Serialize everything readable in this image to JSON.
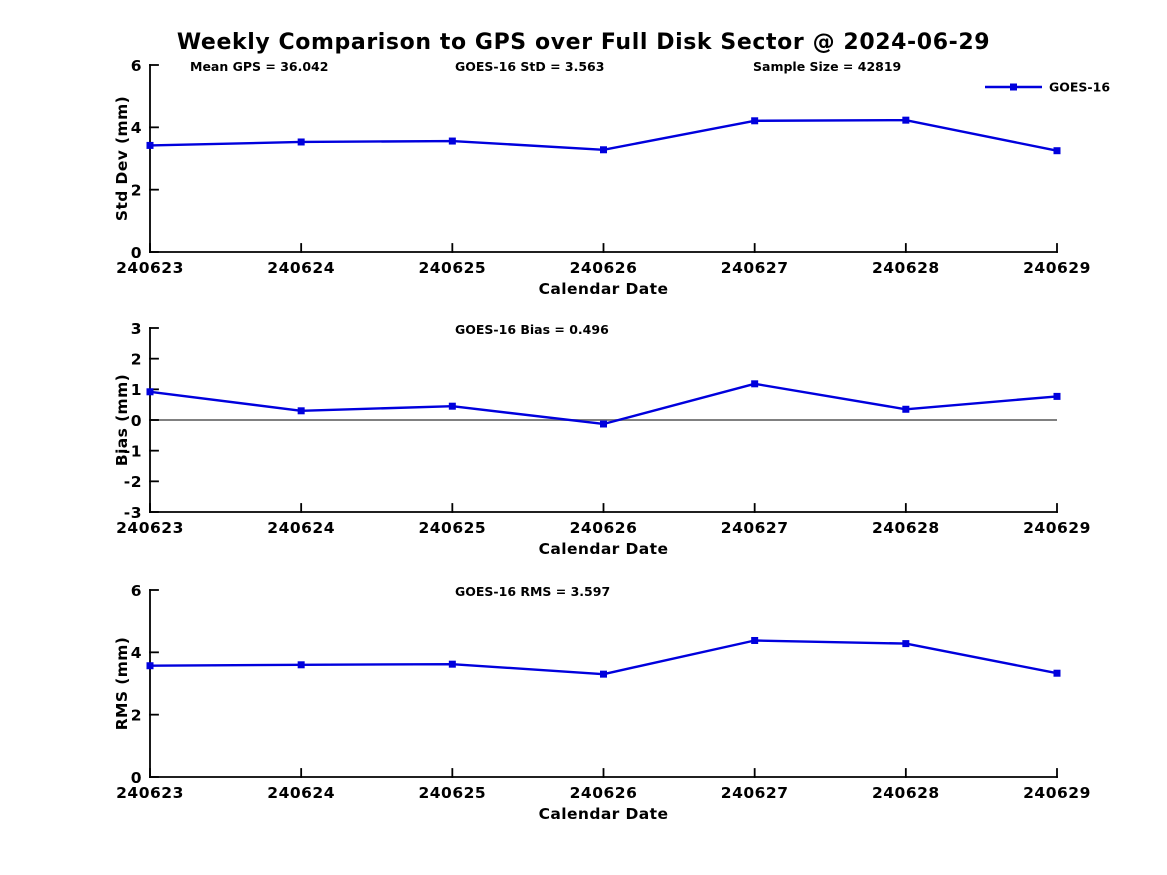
{
  "figure": {
    "title": "Weekly Comparison to GPS over Full Disk Sector @ 2024-06-29",
    "colors": {
      "series": "#0000dd",
      "zero_line": "#808080",
      "text": "#000000",
      "background": "#ffffff"
    }
  },
  "legend": {
    "label": "GOES-16",
    "position": "top-right"
  },
  "chart_data": [
    {
      "type": "line",
      "id": "stddev",
      "ylabel": "Std Dev (mm)",
      "xlabel": "Calendar Date",
      "categories": [
        "240623",
        "240624",
        "240625",
        "240626",
        "240627",
        "240628",
        "240629"
      ],
      "series": [
        {
          "name": "GOES-16",
          "marker": "square",
          "values": [
            3.42,
            3.53,
            3.56,
            3.28,
            4.21,
            4.23,
            3.25
          ]
        }
      ],
      "ylim": [
        0,
        6
      ],
      "yticks": [
        0,
        2,
        4,
        6
      ],
      "grid": false,
      "zero_line": false,
      "show_legend": true,
      "annotations": [
        {
          "text": "Mean GPS = 36.042",
          "x": 190
        },
        {
          "text": "GOES-16 StD = 3.563",
          "x": 455
        },
        {
          "text": "Sample Size = 42819",
          "x": 753
        }
      ]
    },
    {
      "type": "line",
      "id": "bias",
      "ylabel": "Bias (mm)",
      "xlabel": "Calendar Date",
      "categories": [
        "240623",
        "240624",
        "240625",
        "240626",
        "240627",
        "240628",
        "240629"
      ],
      "series": [
        {
          "name": "GOES-16",
          "marker": "square",
          "values": [
            0.92,
            0.3,
            0.45,
            -0.13,
            1.18,
            0.35,
            0.77
          ]
        }
      ],
      "ylim": [
        -3,
        3
      ],
      "yticks": [
        -3,
        -2,
        -1,
        0,
        1,
        2,
        3
      ],
      "grid": false,
      "zero_line": true,
      "show_legend": false,
      "annotations": [
        {
          "text": "GOES-16 Bias  = 0.496",
          "x": 455
        }
      ]
    },
    {
      "type": "line",
      "id": "rms",
      "ylabel": "RMS (mm)",
      "xlabel": "Calendar Date",
      "categories": [
        "240623",
        "240624",
        "240625",
        "240626",
        "240627",
        "240628",
        "240629"
      ],
      "series": [
        {
          "name": "GOES-16",
          "marker": "square",
          "values": [
            3.57,
            3.6,
            3.62,
            3.3,
            4.38,
            4.28,
            3.33
          ]
        }
      ],
      "ylim": [
        0,
        6
      ],
      "yticks": [
        0,
        2,
        4,
        6
      ],
      "grid": false,
      "zero_line": false,
      "show_legend": false,
      "annotations": [
        {
          "text": "GOES-16 RMS = 3.597",
          "x": 455
        }
      ]
    }
  ]
}
